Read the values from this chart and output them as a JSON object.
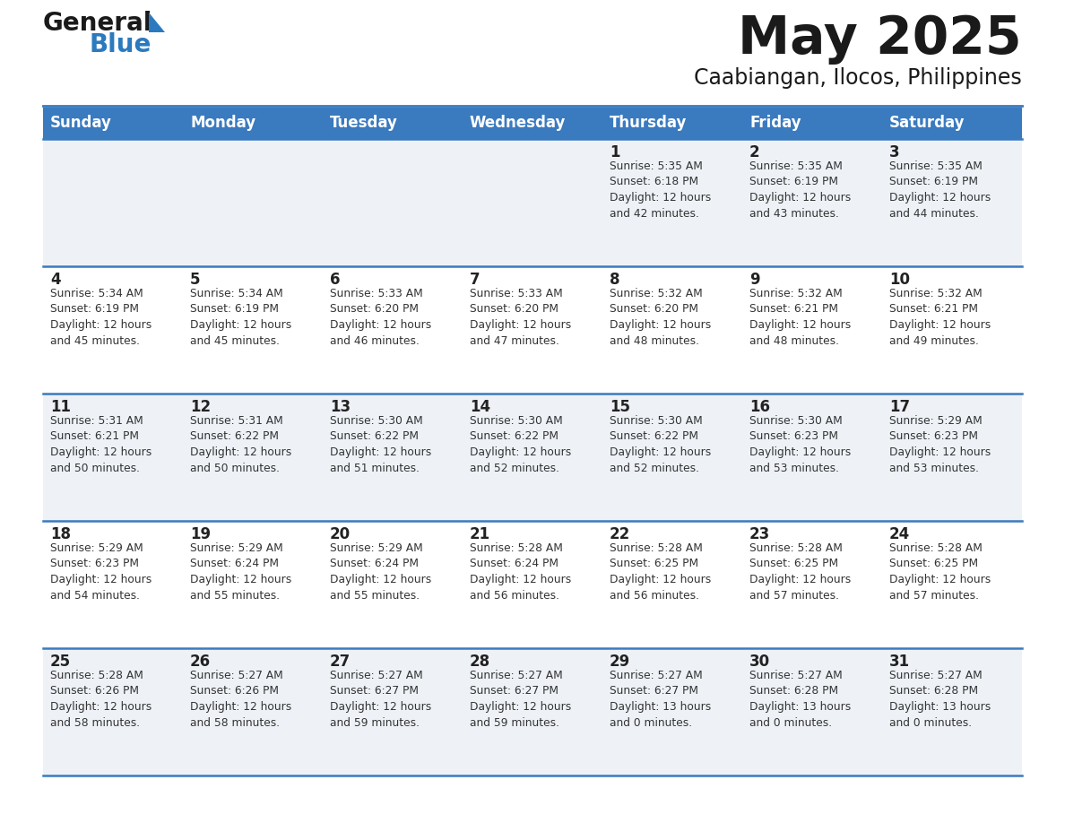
{
  "title": "May 2025",
  "subtitle": "Caabiangan, Ilocos, Philippines",
  "days_of_week": [
    "Sunday",
    "Monday",
    "Tuesday",
    "Wednesday",
    "Thursday",
    "Friday",
    "Saturday"
  ],
  "header_bg": "#3a7abf",
  "header_text": "#ffffff",
  "cell_bg_odd": "#eef2f7",
  "cell_bg_even": "#ffffff",
  "row_line_color": "#3a7abf",
  "cell_data": [
    [
      null,
      null,
      null,
      null,
      {
        "day": 1,
        "sunrise": "5:35 AM",
        "sunset": "6:18 PM",
        "daylight": "12 hours\nand 42 minutes."
      },
      {
        "day": 2,
        "sunrise": "5:35 AM",
        "sunset": "6:19 PM",
        "daylight": "12 hours\nand 43 minutes."
      },
      {
        "day": 3,
        "sunrise": "5:35 AM",
        "sunset": "6:19 PM",
        "daylight": "12 hours\nand 44 minutes."
      }
    ],
    [
      {
        "day": 4,
        "sunrise": "5:34 AM",
        "sunset": "6:19 PM",
        "daylight": "12 hours\nand 45 minutes."
      },
      {
        "day": 5,
        "sunrise": "5:34 AM",
        "sunset": "6:19 PM",
        "daylight": "12 hours\nand 45 minutes."
      },
      {
        "day": 6,
        "sunrise": "5:33 AM",
        "sunset": "6:20 PM",
        "daylight": "12 hours\nand 46 minutes."
      },
      {
        "day": 7,
        "sunrise": "5:33 AM",
        "sunset": "6:20 PM",
        "daylight": "12 hours\nand 47 minutes."
      },
      {
        "day": 8,
        "sunrise": "5:32 AM",
        "sunset": "6:20 PM",
        "daylight": "12 hours\nand 48 minutes."
      },
      {
        "day": 9,
        "sunrise": "5:32 AM",
        "sunset": "6:21 PM",
        "daylight": "12 hours\nand 48 minutes."
      },
      {
        "day": 10,
        "sunrise": "5:32 AM",
        "sunset": "6:21 PM",
        "daylight": "12 hours\nand 49 minutes."
      }
    ],
    [
      {
        "day": 11,
        "sunrise": "5:31 AM",
        "sunset": "6:21 PM",
        "daylight": "12 hours\nand 50 minutes."
      },
      {
        "day": 12,
        "sunrise": "5:31 AM",
        "sunset": "6:22 PM",
        "daylight": "12 hours\nand 50 minutes."
      },
      {
        "day": 13,
        "sunrise": "5:30 AM",
        "sunset": "6:22 PM",
        "daylight": "12 hours\nand 51 minutes."
      },
      {
        "day": 14,
        "sunrise": "5:30 AM",
        "sunset": "6:22 PM",
        "daylight": "12 hours\nand 52 minutes."
      },
      {
        "day": 15,
        "sunrise": "5:30 AM",
        "sunset": "6:22 PM",
        "daylight": "12 hours\nand 52 minutes."
      },
      {
        "day": 16,
        "sunrise": "5:30 AM",
        "sunset": "6:23 PM",
        "daylight": "12 hours\nand 53 minutes."
      },
      {
        "day": 17,
        "sunrise": "5:29 AM",
        "sunset": "6:23 PM",
        "daylight": "12 hours\nand 53 minutes."
      }
    ],
    [
      {
        "day": 18,
        "sunrise": "5:29 AM",
        "sunset": "6:23 PM",
        "daylight": "12 hours\nand 54 minutes."
      },
      {
        "day": 19,
        "sunrise": "5:29 AM",
        "sunset": "6:24 PM",
        "daylight": "12 hours\nand 55 minutes."
      },
      {
        "day": 20,
        "sunrise": "5:29 AM",
        "sunset": "6:24 PM",
        "daylight": "12 hours\nand 55 minutes."
      },
      {
        "day": 21,
        "sunrise": "5:28 AM",
        "sunset": "6:24 PM",
        "daylight": "12 hours\nand 56 minutes."
      },
      {
        "day": 22,
        "sunrise": "5:28 AM",
        "sunset": "6:25 PM",
        "daylight": "12 hours\nand 56 minutes."
      },
      {
        "day": 23,
        "sunrise": "5:28 AM",
        "sunset": "6:25 PM",
        "daylight": "12 hours\nand 57 minutes."
      },
      {
        "day": 24,
        "sunrise": "5:28 AM",
        "sunset": "6:25 PM",
        "daylight": "12 hours\nand 57 minutes."
      }
    ],
    [
      {
        "day": 25,
        "sunrise": "5:28 AM",
        "sunset": "6:26 PM",
        "daylight": "12 hours\nand 58 minutes."
      },
      {
        "day": 26,
        "sunrise": "5:27 AM",
        "sunset": "6:26 PM",
        "daylight": "12 hours\nand 58 minutes."
      },
      {
        "day": 27,
        "sunrise": "5:27 AM",
        "sunset": "6:27 PM",
        "daylight": "12 hours\nand 59 minutes."
      },
      {
        "day": 28,
        "sunrise": "5:27 AM",
        "sunset": "6:27 PM",
        "daylight": "12 hours\nand 59 minutes."
      },
      {
        "day": 29,
        "sunrise": "5:27 AM",
        "sunset": "6:27 PM",
        "daylight": "13 hours\nand 0 minutes."
      },
      {
        "day": 30,
        "sunrise": "5:27 AM",
        "sunset": "6:28 PM",
        "daylight": "13 hours\nand 0 minutes."
      },
      {
        "day": 31,
        "sunrise": "5:27 AM",
        "sunset": "6:28 PM",
        "daylight": "13 hours\nand 0 minutes."
      }
    ]
  ],
  "logo_general_color": "#1a1a1a",
  "logo_blue_color": "#2b7abf",
  "title_color": "#1a1a1a",
  "subtitle_color": "#1a1a1a"
}
